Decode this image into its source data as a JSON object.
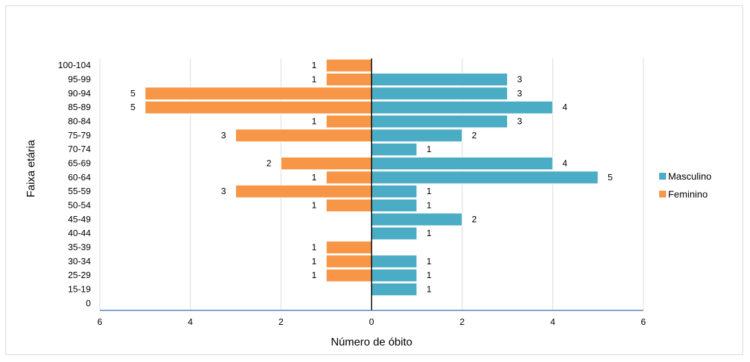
{
  "chart_data": {
    "type": "bar",
    "orientation": "horizontal",
    "categories": [
      "0",
      "15-19",
      "25-29",
      "30-34",
      "35-39",
      "40-44",
      "45-49",
      "50-54",
      "55-59",
      "60-64",
      "65-69",
      "70-74",
      "75-79",
      "80-84",
      "85-89",
      "90-94",
      "95-99",
      "100-104"
    ],
    "series": [
      {
        "name": "Masculino",
        "color": "#4bacc6",
        "values": [
          0,
          1,
          1,
          1,
          0,
          1,
          2,
          1,
          1,
          5,
          4,
          1,
          2,
          3,
          4,
          3,
          3,
          0
        ]
      },
      {
        "name": "Feminino",
        "color": "#f79646",
        "values": [
          0,
          0,
          1,
          1,
          1,
          0,
          0,
          1,
          3,
          1,
          2,
          0,
          3,
          1,
          5,
          5,
          1,
          1
        ]
      }
    ],
    "xlabel": "Número de óbito",
    "ylabel": "Faixa etária",
    "xlim": [
      -6,
      6
    ],
    "xticks": [
      -6,
      -4,
      -2,
      0,
      2,
      4,
      6
    ],
    "xtick_labels": [
      "6",
      "4",
      "2",
      "0",
      "2",
      "4",
      "6"
    ],
    "grid": "vertical",
    "legend_position": "right"
  }
}
